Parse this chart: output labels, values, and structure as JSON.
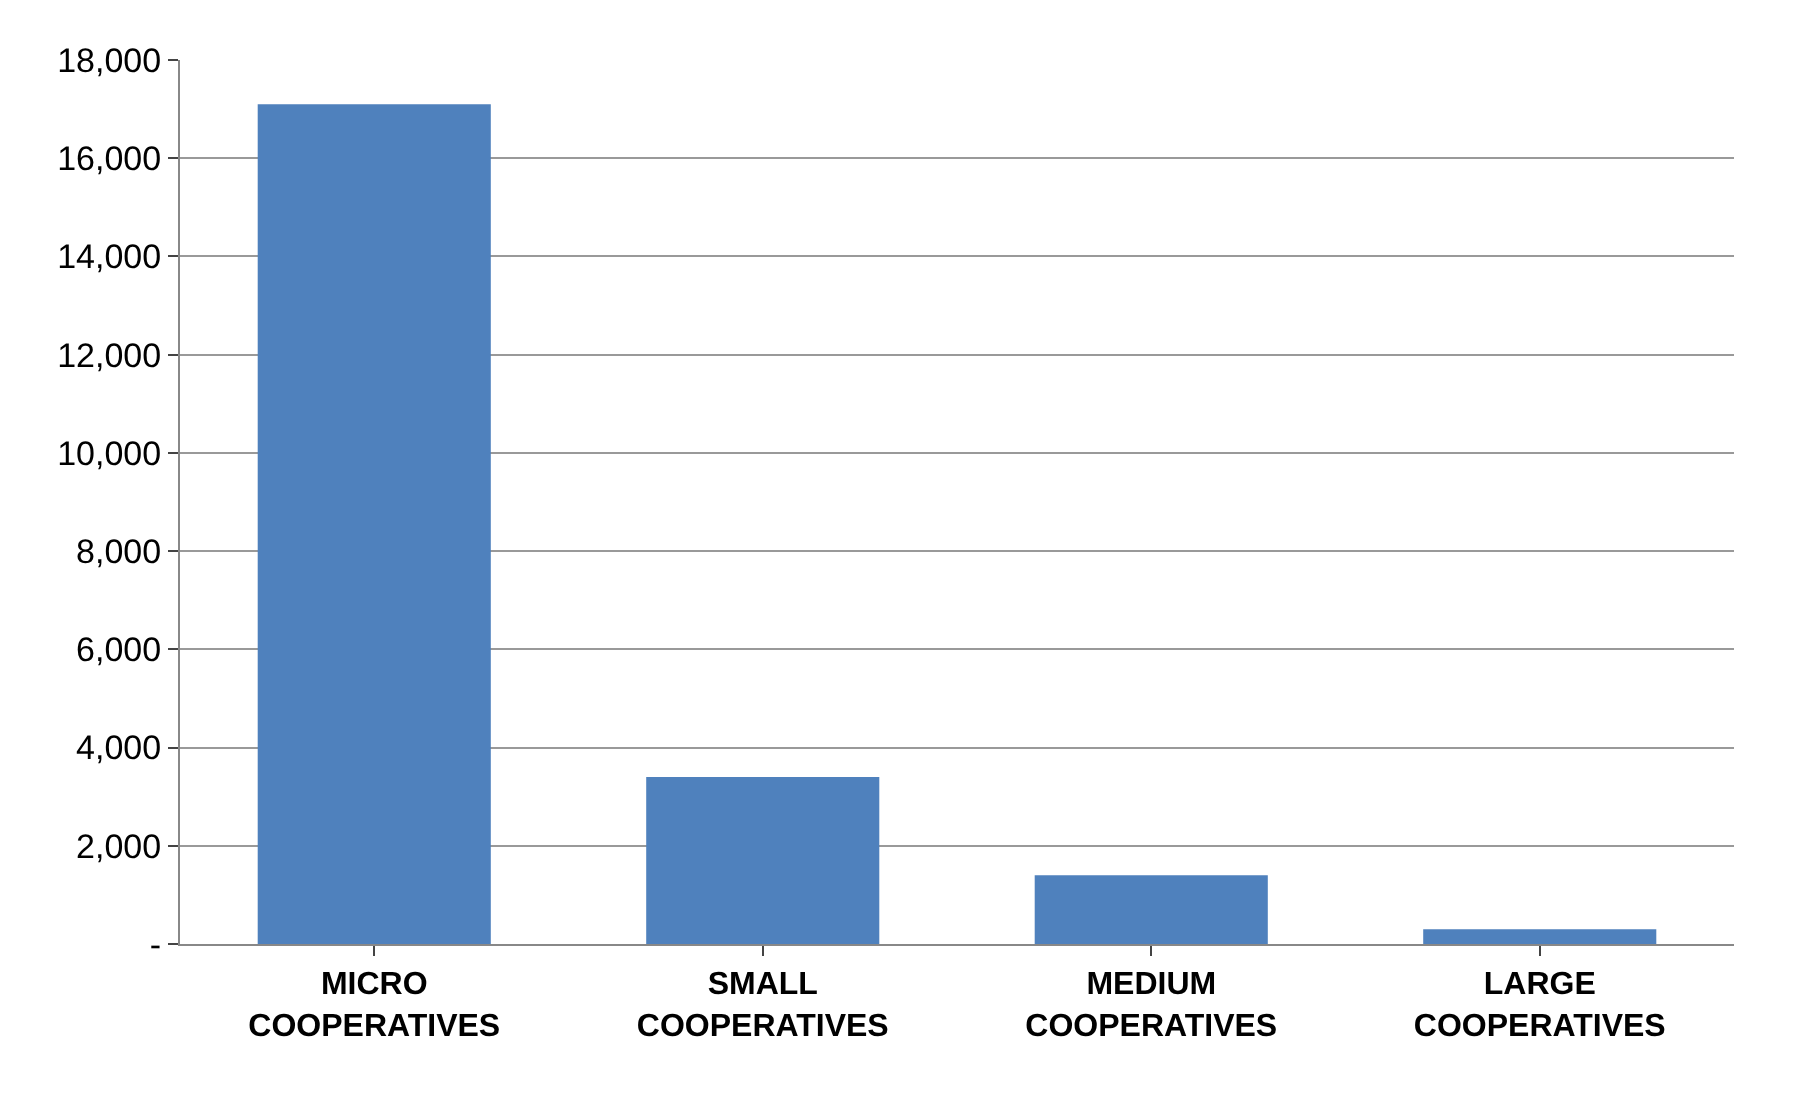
{
  "chart_data": {
    "type": "bar",
    "categories": [
      "MICRO\nCOOPERATIVES",
      "SMALL\nCOOPERATIVES",
      "MEDIUM\nCOOPERATIVES",
      "LARGE\nCOOPERATIVES"
    ],
    "values": [
      17100,
      3400,
      1400,
      300
    ],
    "color": "#4f81bd",
    "ylim": [
      0,
      18000
    ],
    "yticks": [
      {
        "value": 0,
        "label": "-"
      },
      {
        "value": 2000,
        "label": "2,000"
      },
      {
        "value": 4000,
        "label": "4,000"
      },
      {
        "value": 6000,
        "label": "6,000"
      },
      {
        "value": 8000,
        "label": "8,000"
      },
      {
        "value": 10000,
        "label": "10,000"
      },
      {
        "value": 12000,
        "label": "12,000"
      },
      {
        "value": 14000,
        "label": "14,000"
      },
      {
        "value": 16000,
        "label": "16,000"
      },
      {
        "value": 18000,
        "label": "18,000"
      }
    ],
    "grid": true
  }
}
